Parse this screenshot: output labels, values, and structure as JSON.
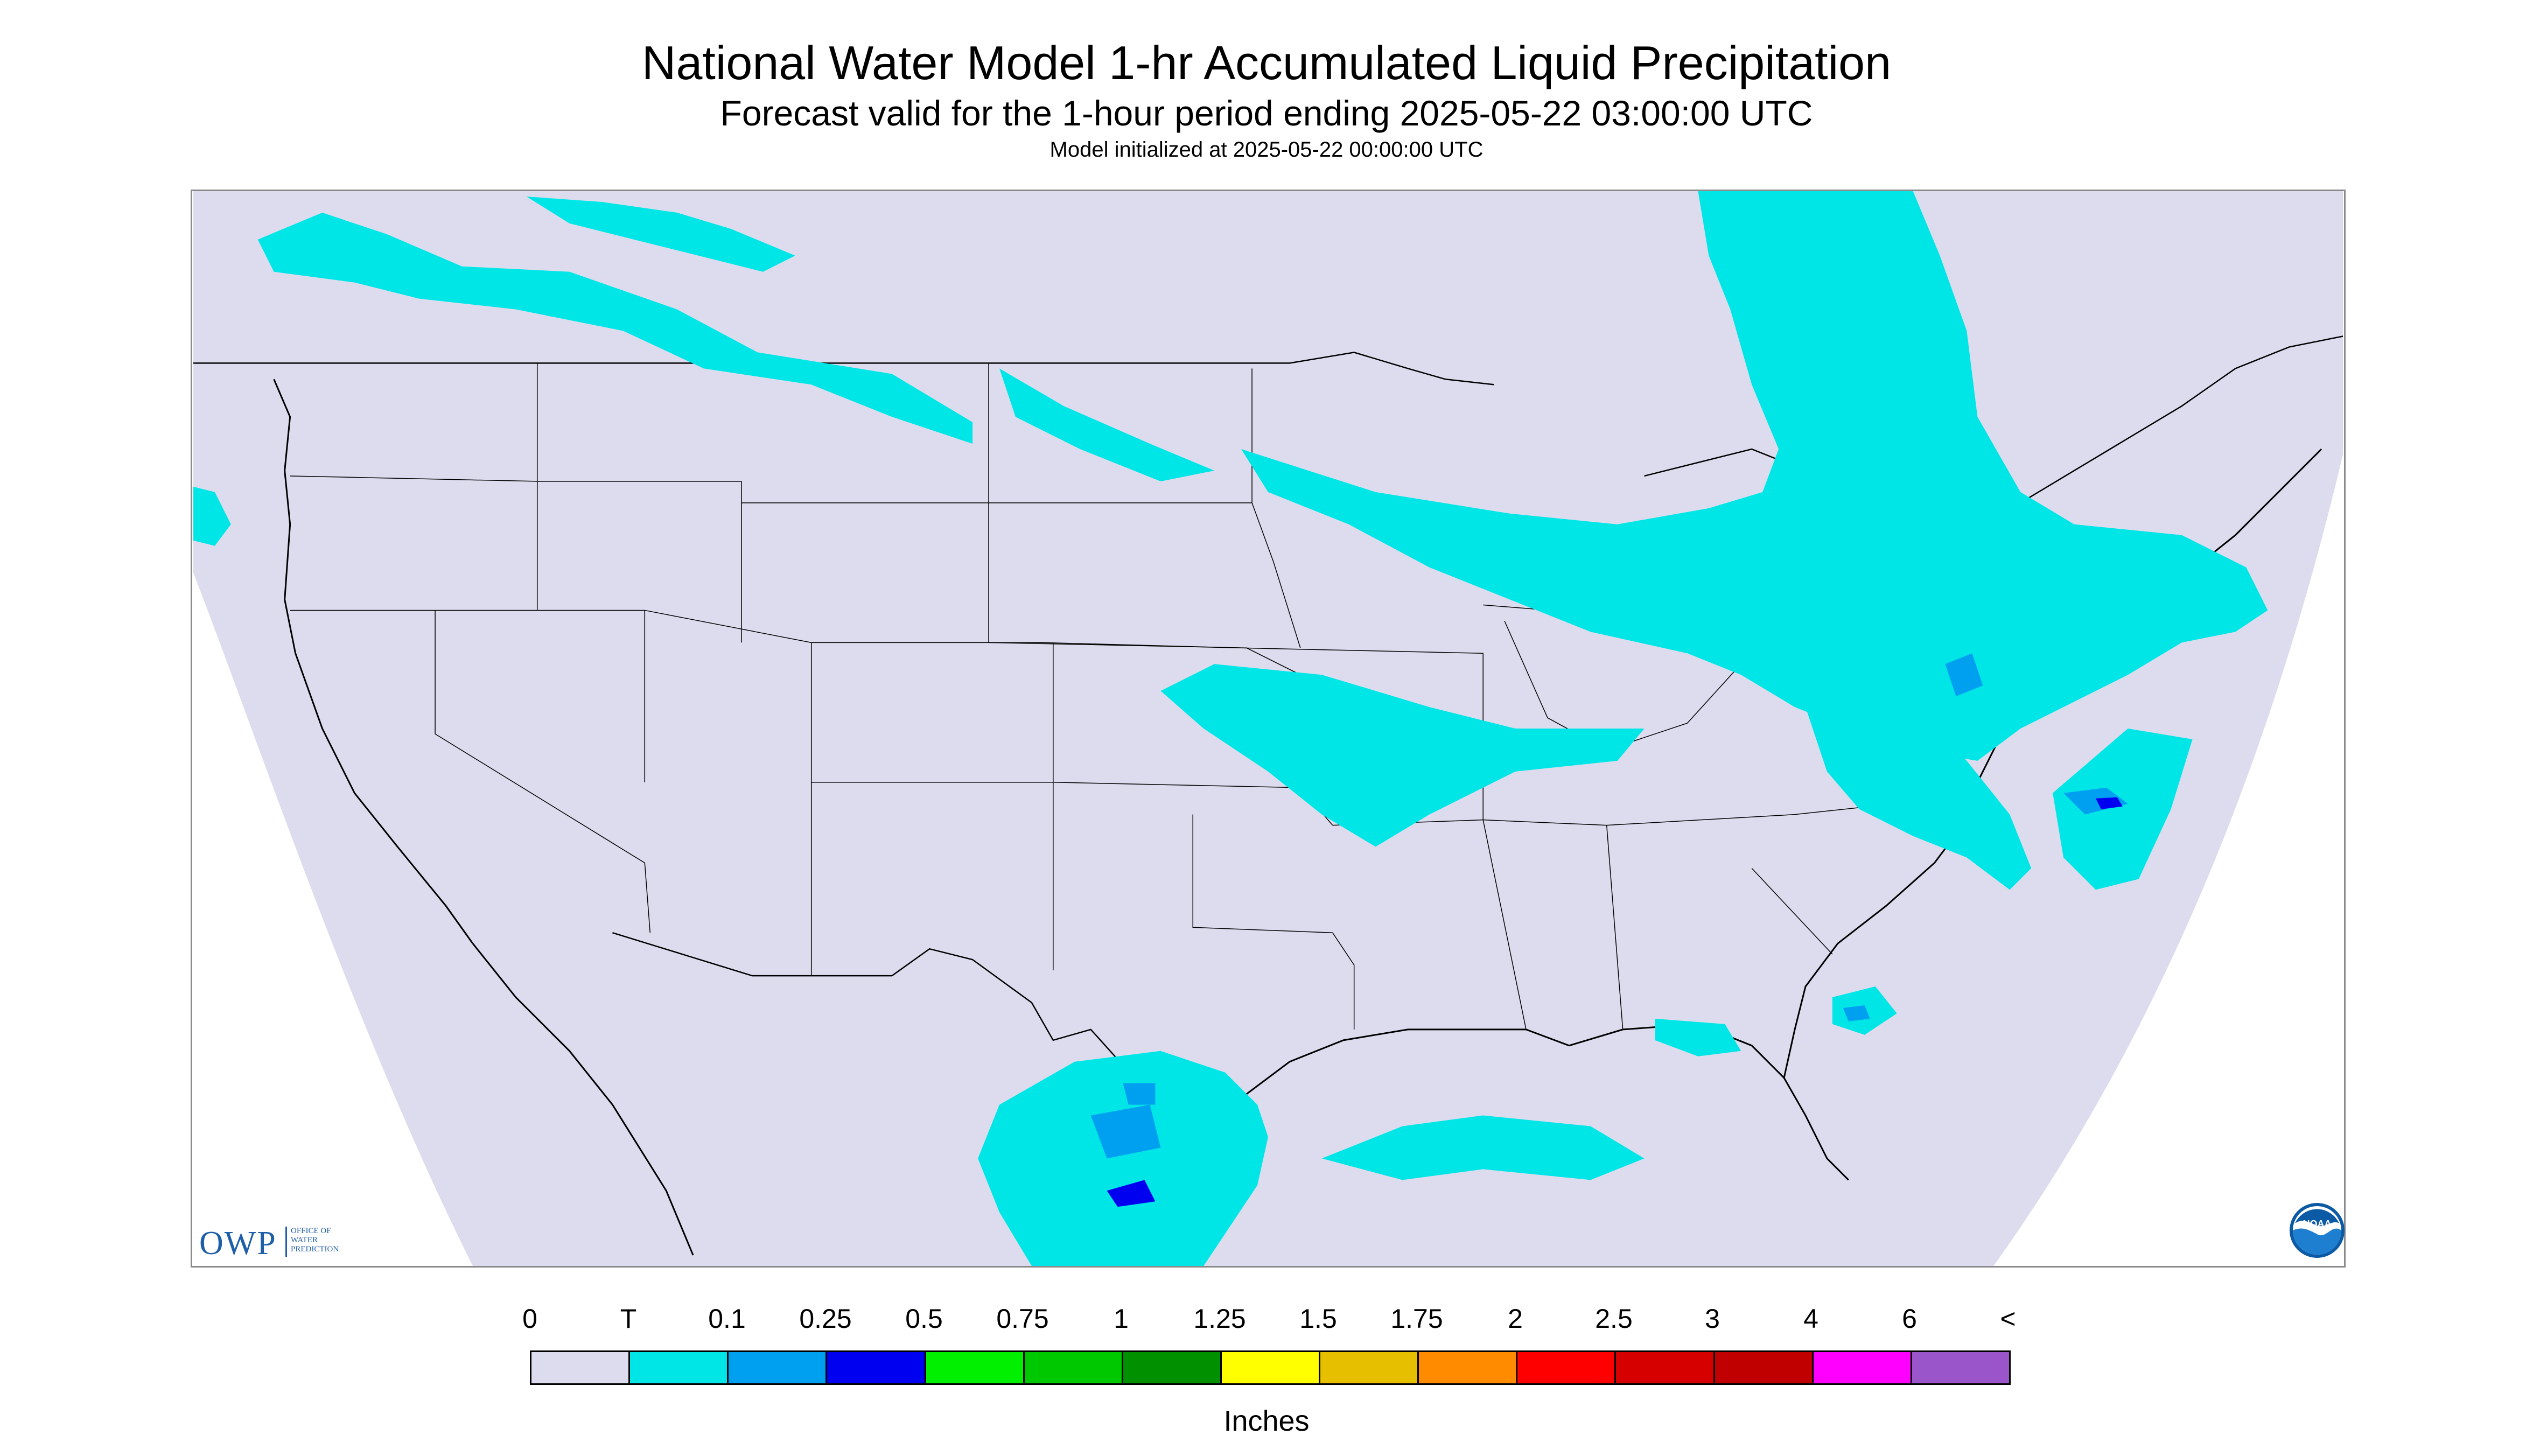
{
  "header": {
    "title": "National Water Model 1-hr Accumulated Liquid Precipitation",
    "subtitle": "Forecast valid for the 1-hour period ending 2025-05-22 03:00:00 UTC",
    "init_line": "Model initialized at 2025-05-22 00:00:00 UTC"
  },
  "map": {
    "region": "Continental United States",
    "projection": "Lambert conformal (domain shown as trapezoid)",
    "domain_fill_color": "#dcdcee",
    "outside_domain_color": "#ffffff",
    "boundary_color": "#000000",
    "precip_areas": [
      {
        "name": "Northern Rockies / Montana",
        "category": "T"
      },
      {
        "name": "Northern Plains",
        "category": "T"
      },
      {
        "name": "Great Lakes / Ohio Valley",
        "category": "T"
      },
      {
        "name": "Northeast / Mid-Atlantic",
        "category": "T",
        "embedded_max_category": "0.1"
      },
      {
        "name": "Offshore North Carolina",
        "category": "T",
        "embedded_max_category": "0.25"
      },
      {
        "name": "Kansas / Missouri band",
        "category": "T"
      },
      {
        "name": "South Texas / Northeast Mexico",
        "category": "T",
        "embedded_max_category": "0.25"
      },
      {
        "name": "Gulf of Mexico scattered",
        "category": "T"
      },
      {
        "name": "Atlantic off Florida",
        "category": "T"
      }
    ]
  },
  "logos": {
    "owp_mark": "OWP",
    "owp_sub": [
      "OFFICE OF",
      "WATER",
      "PREDICTION"
    ],
    "owp_color": "#1f5ea8",
    "noaa_text": "NOAA"
  },
  "legend": {
    "tick_labels": [
      "0",
      "T",
      "0.1",
      "0.25",
      "0.5",
      "0.75",
      "1",
      "1.25",
      "1.5",
      "1.75",
      "2",
      "2.5",
      "3",
      "4",
      "6",
      "<"
    ],
    "colors": [
      "#dcdcee",
      "#00e6e6",
      "#00a0f0",
      "#0000f0",
      "#00f000",
      "#00c800",
      "#009000",
      "#ffff00",
      "#e6c000",
      "#ff8c00",
      "#ff0000",
      "#d70000",
      "#c00000",
      "#ff00ff",
      "#9955c9"
    ],
    "units_label": "Inches"
  }
}
